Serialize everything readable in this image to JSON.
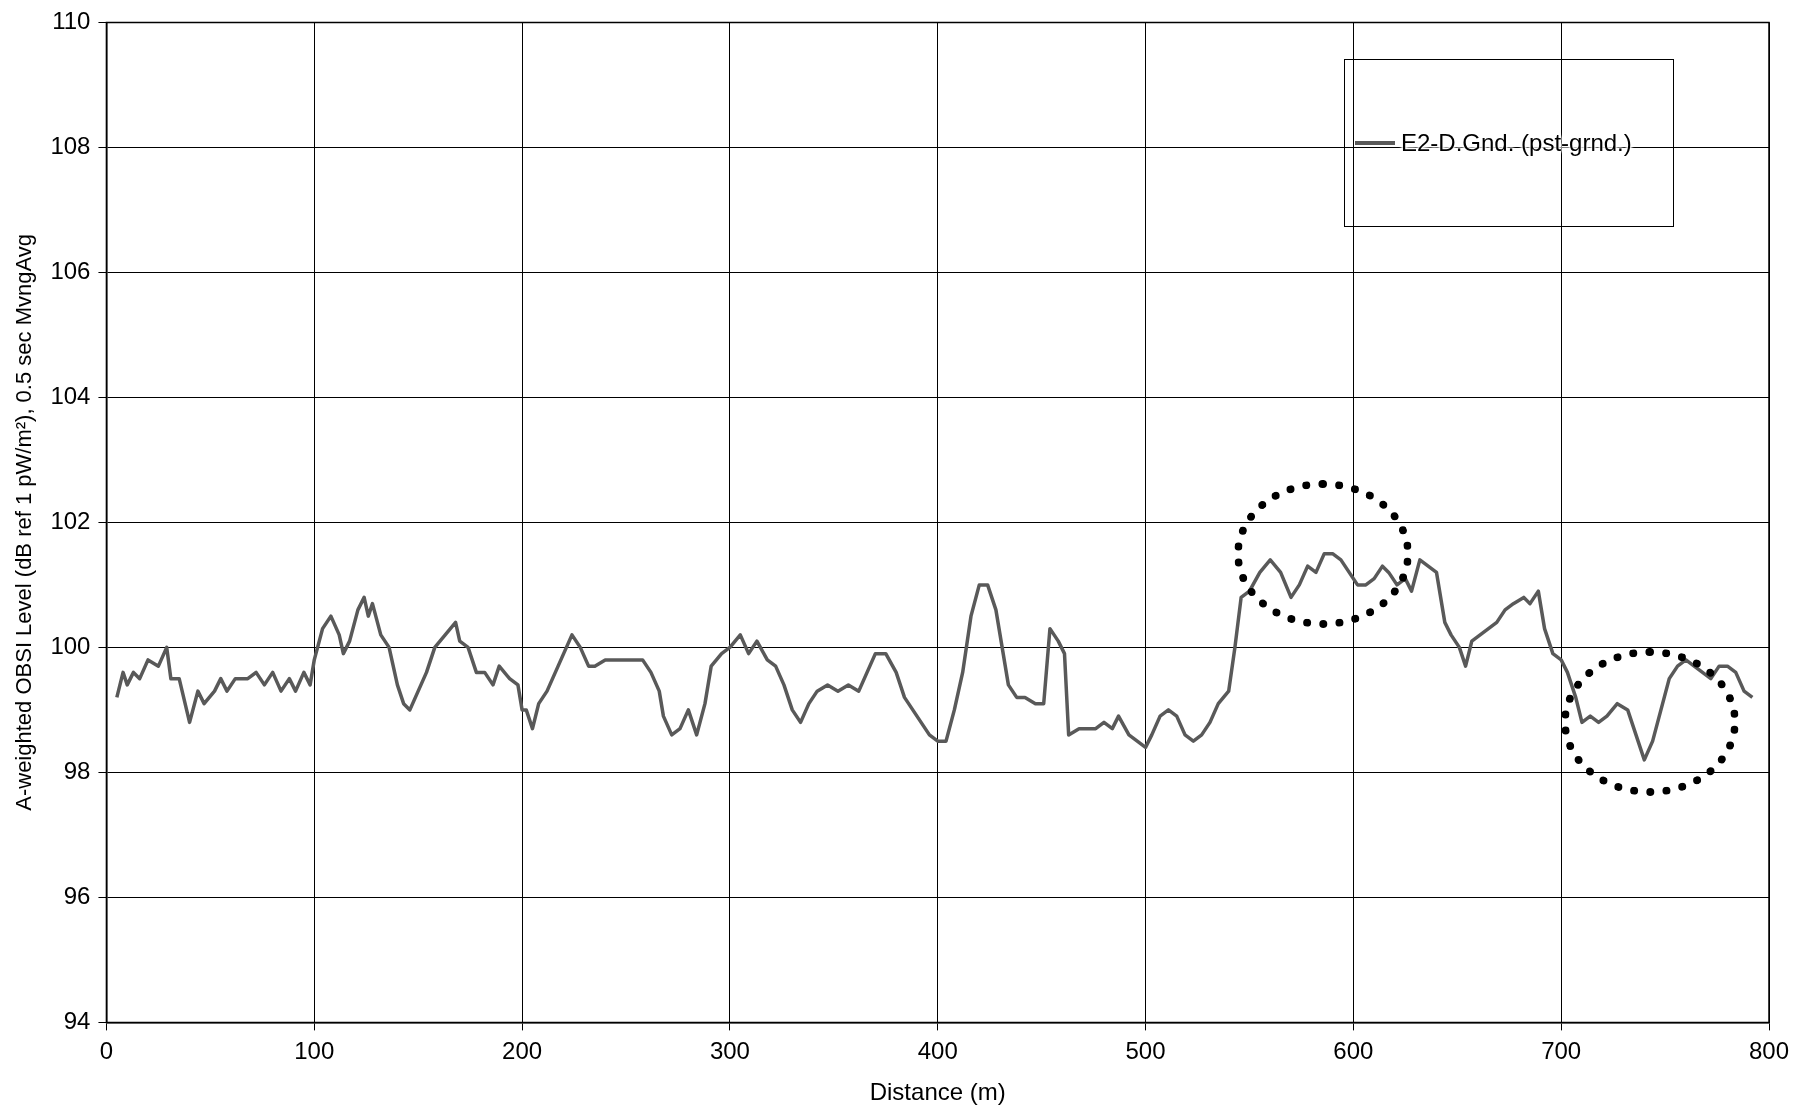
{
  "chart_data": {
    "type": "line",
    "xlabel": "Distance (m)",
    "ylabel": "A-weighted OBSI Level (dB ref 1 pW/m²), 0.5 sec MvngAvg",
    "xlim": [
      0,
      800
    ],
    "xticks": [
      0,
      100,
      200,
      300,
      400,
      500,
      600,
      700,
      800
    ],
    "ylim": [
      94,
      110
    ],
    "yticks": [
      94,
      96,
      98,
      100,
      102,
      104,
      106,
      108,
      110
    ],
    "grid": true,
    "legend": "top right",
    "marker": "none",
    "line_style": "solid",
    "series": [
      {
        "name": "E2-D.Gnd. (pst-grnd.)",
        "color": "#595959",
        "x": [
          5,
          8,
          10,
          13,
          16,
          20,
          25,
          29,
          31,
          35,
          40,
          44,
          47,
          52,
          55,
          58,
          62,
          68,
          72,
          76,
          80,
          84,
          88,
          91,
          95,
          98,
          100,
          104,
          108,
          112,
          114,
          117,
          121,
          124,
          126,
          128,
          132,
          136,
          140,
          143,
          146,
          150,
          154,
          158,
          163,
          168,
          170,
          174,
          178,
          182,
          186,
          189,
          194,
          198,
          200,
          202,
          205,
          208,
          212,
          216,
          220,
          224,
          228,
          232,
          235,
          240,
          246,
          252,
          258,
          262,
          266,
          268,
          272,
          276,
          280,
          284,
          288,
          291,
          296,
          300,
          305,
          309,
          313,
          318,
          322,
          326,
          330,
          334,
          338,
          342,
          347,
          352,
          357,
          362,
          366,
          370,
          375,
          380,
          384,
          388,
          392,
          396,
          400,
          404,
          408,
          412,
          416,
          420,
          424,
          428,
          431,
          434,
          438,
          442,
          447,
          451,
          454,
          458,
          461,
          463,
          468,
          472,
          476,
          480,
          484,
          487,
          492,
          496,
          500,
          503,
          507,
          511,
          515,
          519,
          523,
          527,
          531,
          535,
          540,
          543,
          546,
          550,
          555,
          560,
          565,
          570,
          574,
          578,
          582,
          586,
          590,
          594,
          598,
          602,
          606,
          610,
          614,
          617,
          621,
          625,
          628,
          632,
          636,
          640,
          644,
          647,
          651,
          654,
          657,
          661,
          665,
          669,
          673,
          677,
          682,
          685,
          689,
          692,
          696,
          700,
          703,
          707,
          710,
          714,
          718,
          722,
          727,
          732,
          736,
          740,
          744,
          748,
          752,
          756,
          760,
          764,
          768,
          772,
          776,
          780,
          784,
          788,
          792
        ],
        "values": [
          99.2,
          99.6,
          99.4,
          99.6,
          99.5,
          99.8,
          99.7,
          100.0,
          99.5,
          99.5,
          98.8,
          99.3,
          99.1,
          99.3,
          99.5,
          99.3,
          99.5,
          99.5,
          99.6,
          99.4,
          99.6,
          99.3,
          99.5,
          99.3,
          99.6,
          99.4,
          99.8,
          100.3,
          100.5,
          100.2,
          99.9,
          100.1,
          100.6,
          100.8,
          100.5,
          100.7,
          100.2,
          100.0,
          99.4,
          99.1,
          99.0,
          99.3,
          99.6,
          100.0,
          100.2,
          100.4,
          100.1,
          100.0,
          99.6,
          99.6,
          99.4,
          99.7,
          99.5,
          99.4,
          99.0,
          99.0,
          98.7,
          99.1,
          99.3,
          99.6,
          99.9,
          100.2,
          100.0,
          99.7,
          99.7,
          99.8,
          99.8,
          99.8,
          99.8,
          99.6,
          99.3,
          98.9,
          98.6,
          98.7,
          99.0,
          98.6,
          99.1,
          99.7,
          99.9,
          100.0,
          100.2,
          99.9,
          100.1,
          99.8,
          99.7,
          99.4,
          99.0,
          98.8,
          99.1,
          99.3,
          99.4,
          99.3,
          99.4,
          99.3,
          99.6,
          99.9,
          99.9,
          99.6,
          99.2,
          99.0,
          98.8,
          98.6,
          98.5,
          98.5,
          99.0,
          99.6,
          100.5,
          101.0,
          101.0,
          100.6,
          100.0,
          99.4,
          99.2,
          99.2,
          99.1,
          99.1,
          100.3,
          100.1,
          99.9,
          98.6,
          98.7,
          98.7,
          98.7,
          98.8,
          98.7,
          98.9,
          98.6,
          98.5,
          98.4,
          98.6,
          98.9,
          99.0,
          98.9,
          98.6,
          98.5,
          98.6,
          98.8,
          99.1,
          99.3,
          100.0,
          100.8,
          100.9,
          101.2,
          101.4,
          101.2,
          100.8,
          101.0,
          101.3,
          101.2,
          101.5,
          101.5,
          101.4,
          101.2,
          101.0,
          101.0,
          101.1,
          101.3,
          101.2,
          101.0,
          101.1,
          100.9,
          101.4,
          101.3,
          101.2,
          100.4,
          100.2,
          100.0,
          99.7,
          100.1,
          100.2,
          100.3,
          100.4,
          100.6,
          100.7,
          100.8,
          100.7,
          100.9,
          100.3,
          99.9,
          99.8,
          99.6,
          99.2,
          98.8,
          98.9,
          98.8,
          98.9,
          99.1,
          99.0,
          98.6,
          98.2,
          98.5,
          99.0,
          99.5,
          99.7,
          99.8,
          99.7,
          99.6,
          99.5,
          99.7,
          99.7,
          99.6,
          99.3,
          99.2
        ]
      }
    ]
  }
}
